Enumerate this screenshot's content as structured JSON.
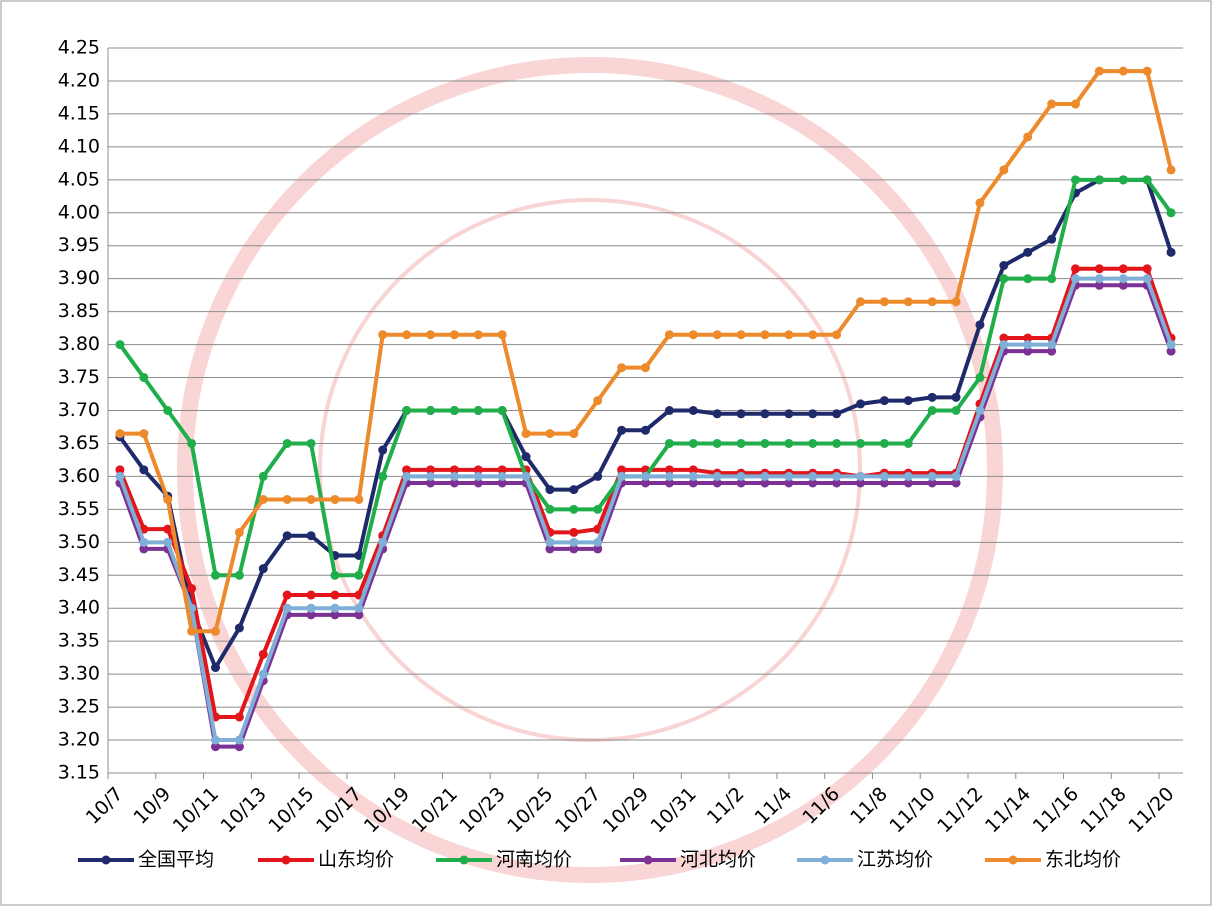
{
  "chart_data": {
    "type": "line",
    "categories": [
      "10/7",
      null,
      "10/9",
      null,
      "10/11",
      null,
      "10/13",
      null,
      "10/15",
      null,
      "10/17",
      null,
      "10/19",
      null,
      "10/21",
      null,
      "10/23",
      null,
      "10/25",
      null,
      "10/27",
      null,
      "10/29",
      null,
      "10/31",
      null,
      "11/2",
      null,
      "11/4",
      null,
      "11/6",
      null,
      "11/8",
      null,
      "11/10",
      null,
      "11/12",
      null,
      "11/14",
      null,
      "11/16",
      null,
      "11/18",
      null,
      "11/20"
    ],
    "series": [
      {
        "name": "全国平均",
        "color": "#1f2a6b",
        "values": [
          3.66,
          3.61,
          3.57,
          3.4,
          3.31,
          3.37,
          3.46,
          3.51,
          3.51,
          3.48,
          3.48,
          3.64,
          3.7,
          3.7,
          3.7,
          3.7,
          3.7,
          3.63,
          3.58,
          3.58,
          3.6,
          3.67,
          3.67,
          3.7,
          3.7,
          3.695,
          3.695,
          3.695,
          3.695,
          3.695,
          3.695,
          3.71,
          3.715,
          3.715,
          3.72,
          3.72,
          3.83,
          3.92,
          3.94,
          3.96,
          4.03,
          4.05,
          4.05,
          4.05,
          3.94
        ]
      },
      {
        "name": "山东均价",
        "color": "#e3151b",
        "values": [
          3.61,
          3.52,
          3.52,
          3.43,
          3.235,
          3.235,
          3.33,
          3.42,
          3.42,
          3.42,
          3.42,
          3.51,
          3.61,
          3.61,
          3.61,
          3.61,
          3.61,
          3.61,
          3.515,
          3.515,
          3.52,
          3.61,
          3.61,
          3.61,
          3.61,
          3.605,
          3.605,
          3.605,
          3.605,
          3.605,
          3.605,
          3.6,
          3.605,
          3.605,
          3.605,
          3.605,
          3.71,
          3.81,
          3.81,
          3.81,
          3.915,
          3.915,
          3.915,
          3.915,
          3.81
        ]
      },
      {
        "name": "河南均价",
        "color": "#1fae4a",
        "values": [
          3.8,
          3.75,
          3.7,
          3.65,
          3.45,
          3.45,
          3.6,
          3.65,
          3.65,
          3.45,
          3.45,
          3.6,
          3.7,
          3.7,
          3.7,
          3.7,
          3.7,
          3.6,
          3.55,
          3.55,
          3.55,
          3.6,
          3.6,
          3.65,
          3.65,
          3.65,
          3.65,
          3.65,
          3.65,
          3.65,
          3.65,
          3.65,
          3.65,
          3.65,
          3.7,
          3.7,
          3.75,
          3.9,
          3.9,
          3.9,
          4.05,
          4.05,
          4.05,
          4.05,
          4.0
        ]
      },
      {
        "name": "河北均价",
        "color": "#7b3294",
        "values": [
          3.59,
          3.49,
          3.49,
          3.4,
          3.19,
          3.19,
          3.29,
          3.39,
          3.39,
          3.39,
          3.39,
          3.49,
          3.59,
          3.59,
          3.59,
          3.59,
          3.59,
          3.59,
          3.49,
          3.49,
          3.49,
          3.59,
          3.59,
          3.59,
          3.59,
          3.59,
          3.59,
          3.59,
          3.59,
          3.59,
          3.59,
          3.59,
          3.59,
          3.59,
          3.59,
          3.59,
          3.69,
          3.79,
          3.79,
          3.79,
          3.89,
          3.89,
          3.89,
          3.89,
          3.79
        ]
      },
      {
        "name": "江苏均价",
        "color": "#7faed6",
        "values": [
          3.6,
          3.5,
          3.5,
          3.4,
          3.2,
          3.2,
          3.3,
          3.4,
          3.4,
          3.4,
          3.4,
          3.5,
          3.6,
          3.6,
          3.6,
          3.6,
          3.6,
          3.6,
          3.5,
          3.5,
          3.5,
          3.6,
          3.6,
          3.6,
          3.6,
          3.6,
          3.6,
          3.6,
          3.6,
          3.6,
          3.6,
          3.6,
          3.6,
          3.6,
          3.6,
          3.6,
          3.7,
          3.8,
          3.8,
          3.8,
          3.9,
          3.9,
          3.9,
          3.9,
          3.8
        ]
      },
      {
        "name": "东北均价",
        "color": "#ec8a2c",
        "values": [
          3.665,
          3.665,
          3.565,
          3.365,
          3.365,
          3.515,
          3.565,
          3.565,
          3.565,
          3.565,
          3.565,
          3.815,
          3.815,
          3.815,
          3.815,
          3.815,
          3.815,
          3.665,
          3.665,
          3.665,
          3.715,
          3.765,
          3.765,
          3.815,
          3.815,
          3.815,
          3.815,
          3.815,
          3.815,
          3.815,
          3.815,
          3.865,
          3.865,
          3.865,
          3.865,
          3.865,
          4.015,
          4.065,
          4.115,
          4.165,
          4.165,
          4.215,
          4.215,
          4.215,
          4.065
        ]
      }
    ],
    "ylim": [
      3.15,
      4.25
    ],
    "yticks": [
      3.15,
      {
        "value": 3.2,
        "label": "3.20"
      },
      3.25,
      {
        "value": 3.3,
        "label": "3.30"
      },
      3.35,
      {
        "value": 3.4,
        "label": "3.40"
      },
      3.45,
      {
        "value": 3.5,
        "label": "3.50"
      },
      3.55,
      {
        "value": 3.6,
        "label": "3.60"
      },
      3.65,
      {
        "value": 3.7,
        "label": "3.70"
      },
      3.75,
      {
        "value": 3.8,
        "label": "3.80"
      },
      3.85,
      {
        "value": 3.9,
        "label": "3.90"
      },
      3.95,
      {
        "value": 4.0,
        "label": "4.00"
      },
      4.05,
      {
        "value": 4.1,
        "label": "4.10"
      },
      4.15,
      {
        "value": 4.2,
        "label": "4.20"
      },
      4.25
    ],
    "grid": true
  }
}
